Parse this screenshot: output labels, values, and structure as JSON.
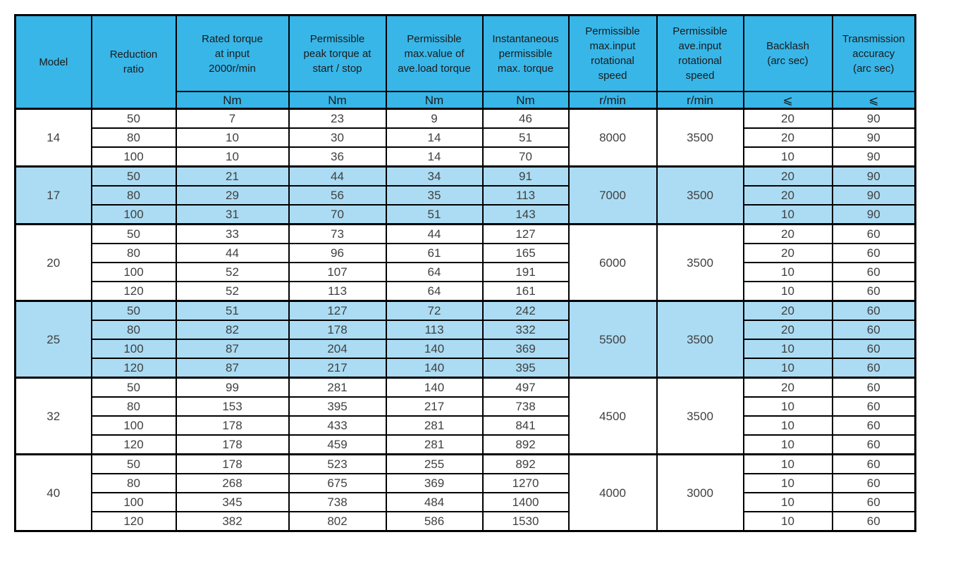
{
  "colors": {
    "page_bg": "#ffffff",
    "header_bg": "#38b6e8",
    "band_bg": "#abdcf3",
    "border": "#000000",
    "header_text": "#1b1b1b",
    "body_text": "#404040"
  },
  "table": {
    "columns": [
      {
        "id": "model",
        "label": "Model",
        "unit": ""
      },
      {
        "id": "ratio",
        "label": "Reduction\nratio",
        "unit": ""
      },
      {
        "id": "rated",
        "label": "Rated torque\nat input\n2000r/min",
        "unit": "Nm"
      },
      {
        "id": "peak",
        "label": "Permissible\npeak torque at\nstart / stop",
        "unit": "Nm"
      },
      {
        "id": "ave_load",
        "label": "Permissible\nmax.value of\nave.load torque",
        "unit": "Nm"
      },
      {
        "id": "instant",
        "label": "Instantaneous\npermissible\nmax. torque",
        "unit": "Nm"
      },
      {
        "id": "max_speed",
        "label": "Permissible\nmax.input\nrotational\nspeed",
        "unit": "r/min"
      },
      {
        "id": "ave_speed",
        "label": "Permissible\nave.input\nrotational\nspeed",
        "unit": "r/min"
      },
      {
        "id": "backlash",
        "label": "Backlash\n(arc sec)",
        "unit": "⩽"
      },
      {
        "id": "accuracy",
        "label": "Transmission\naccuracy\n(arc sec)",
        "unit": "⩽"
      }
    ],
    "groups": [
      {
        "model": "14",
        "highlight": false,
        "max_input_speed": "8000",
        "ave_input_speed": "3500",
        "rows": [
          {
            "ratio": "50",
            "rated": "7",
            "peak": "23",
            "ave_load": "9",
            "instant": "46",
            "backlash": "20",
            "accuracy": "90"
          },
          {
            "ratio": "80",
            "rated": "10",
            "peak": "30",
            "ave_load": "14",
            "instant": "51",
            "backlash": "20",
            "accuracy": "90"
          },
          {
            "ratio": "100",
            "rated": "10",
            "peak": "36",
            "ave_load": "14",
            "instant": "70",
            "backlash": "10",
            "accuracy": "90"
          }
        ]
      },
      {
        "model": "17",
        "highlight": true,
        "max_input_speed": "7000",
        "ave_input_speed": "3500",
        "rows": [
          {
            "ratio": "50",
            "rated": "21",
            "peak": "44",
            "ave_load": "34",
            "instant": "91",
            "backlash": "20",
            "accuracy": "90"
          },
          {
            "ratio": "80",
            "rated": "29",
            "peak": "56",
            "ave_load": "35",
            "instant": "113",
            "backlash": "20",
            "accuracy": "90"
          },
          {
            "ratio": "100",
            "rated": "31",
            "peak": "70",
            "ave_load": "51",
            "instant": "143",
            "backlash": "10",
            "accuracy": "90"
          }
        ]
      },
      {
        "model": "20",
        "highlight": false,
        "max_input_speed": "6000",
        "ave_input_speed": "3500",
        "rows": [
          {
            "ratio": "50",
            "rated": "33",
            "peak": "73",
            "ave_load": "44",
            "instant": "127",
            "backlash": "20",
            "accuracy": "60"
          },
          {
            "ratio": "80",
            "rated": "44",
            "peak": "96",
            "ave_load": "61",
            "instant": "165",
            "backlash": "20",
            "accuracy": "60"
          },
          {
            "ratio": "100",
            "rated": "52",
            "peak": "107",
            "ave_load": "64",
            "instant": "191",
            "backlash": "10",
            "accuracy": "60"
          },
          {
            "ratio": "120",
            "rated": "52",
            "peak": "113",
            "ave_load": "64",
            "instant": "161",
            "backlash": "10",
            "accuracy": "60"
          }
        ]
      },
      {
        "model": "25",
        "highlight": true,
        "max_input_speed": "5500",
        "ave_input_speed": "3500",
        "rows": [
          {
            "ratio": "50",
            "rated": "51",
            "peak": "127",
            "ave_load": "72",
            "instant": "242",
            "backlash": "20",
            "accuracy": "60"
          },
          {
            "ratio": "80",
            "rated": "82",
            "peak": "178",
            "ave_load": "113",
            "instant": "332",
            "backlash": "20",
            "accuracy": "60"
          },
          {
            "ratio": "100",
            "rated": "87",
            "peak": "204",
            "ave_load": "140",
            "instant": "369",
            "backlash": "10",
            "accuracy": "60"
          },
          {
            "ratio": "120",
            "rated": "87",
            "peak": "217",
            "ave_load": "140",
            "instant": "395",
            "backlash": "10",
            "accuracy": "60"
          }
        ]
      },
      {
        "model": "32",
        "highlight": false,
        "max_input_speed": "4500",
        "ave_input_speed": "3500",
        "rows": [
          {
            "ratio": "50",
            "rated": "99",
            "peak": "281",
            "ave_load": "140",
            "instant": "497",
            "backlash": "20",
            "accuracy": "60"
          },
          {
            "ratio": "80",
            "rated": "153",
            "peak": "395",
            "ave_load": "217",
            "instant": "738",
            "backlash": "10",
            "accuracy": "60"
          },
          {
            "ratio": "100",
            "rated": "178",
            "peak": "433",
            "ave_load": "281",
            "instant": "841",
            "backlash": "10",
            "accuracy": "60"
          },
          {
            "ratio": "120",
            "rated": "178",
            "peak": "459",
            "ave_load": "281",
            "instant": "892",
            "backlash": "10",
            "accuracy": "60"
          }
        ]
      },
      {
        "model": "40",
        "highlight": false,
        "max_input_speed": "4000",
        "ave_input_speed": "3000",
        "rows": [
          {
            "ratio": "50",
            "rated": "178",
            "peak": "523",
            "ave_load": "255",
            "instant": "892",
            "backlash": "10",
            "accuracy": "60"
          },
          {
            "ratio": "80",
            "rated": "268",
            "peak": "675",
            "ave_load": "369",
            "instant": "1270",
            "backlash": "10",
            "accuracy": "60"
          },
          {
            "ratio": "100",
            "rated": "345",
            "peak": "738",
            "ave_load": "484",
            "instant": "1400",
            "backlash": "10",
            "accuracy": "60"
          },
          {
            "ratio": "120",
            "rated": "382",
            "peak": "802",
            "ave_load": "586",
            "instant": "1530",
            "backlash": "10",
            "accuracy": "60"
          }
        ]
      }
    ]
  }
}
